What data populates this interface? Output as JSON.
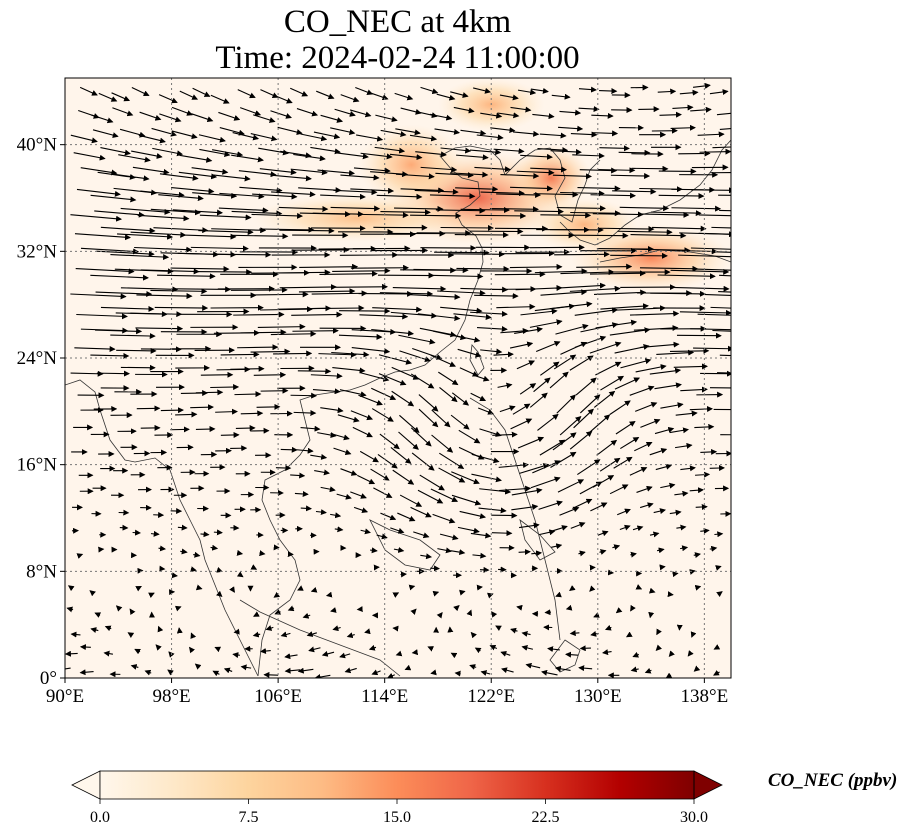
{
  "title_line1": "CO_NEC at 4km",
  "title_line2": "Time: 2024-02-24 11:00:00",
  "map": {
    "lon_range": [
      90,
      140
    ],
    "lat_range": [
      0,
      45
    ],
    "lon_ticks": [
      {
        "value": 90,
        "label": "90°E"
      },
      {
        "value": 98,
        "label": "98°E"
      },
      {
        "value": 106,
        "label": "106°E"
      },
      {
        "value": 114,
        "label": "114°E"
      },
      {
        "value": 122,
        "label": "122°E"
      },
      {
        "value": 130,
        "label": "130°E"
      },
      {
        "value": 138,
        "label": "138°E"
      }
    ],
    "lat_ticks": [
      {
        "value": 0,
        "label": "0°"
      },
      {
        "value": 8,
        "label": "8°N"
      },
      {
        "value": 16,
        "label": "16°N"
      },
      {
        "value": 24,
        "label": "24°N"
      },
      {
        "value": 32,
        "label": "32°N"
      },
      {
        "value": 40,
        "label": "40°N"
      }
    ],
    "gridlines": true,
    "background_color": "#fff5eb",
    "plumes": [
      {
        "lon": 121.0,
        "lat": 36.0,
        "rlon": 7.0,
        "rlat": 3.5,
        "ppbv": 19
      },
      {
        "lon": 126.5,
        "lat": 37.5,
        "rlon": 3.0,
        "rlat": 2.5,
        "ppbv": 17
      },
      {
        "lon": 116.0,
        "lat": 38.5,
        "rlon": 4.0,
        "rlat": 3.0,
        "ppbv": 13
      },
      {
        "lon": 112.0,
        "lat": 34.5,
        "rlon": 8.0,
        "rlat": 1.8,
        "ppbv": 11
      },
      {
        "lon": 134.0,
        "lat": 31.5,
        "rlon": 6.0,
        "rlat": 2.5,
        "ppbv": 16
      },
      {
        "lon": 122.0,
        "lat": 43.0,
        "rlon": 4.0,
        "rlat": 2.0,
        "ppbv": 12
      },
      {
        "lon": 129.0,
        "lat": 34.0,
        "rlon": 4.0,
        "rlat": 2.0,
        "ppbv": 12
      }
    ]
  },
  "colorbar": {
    "title": "CO_NEC (ppbv)",
    "min": 0.0,
    "max": 30.0,
    "extend": "both",
    "colormap": "OrRd",
    "stops": [
      "#fff7ec",
      "#fee8c8",
      "#fdd49e",
      "#fdbb84",
      "#fc8d59",
      "#ef6548",
      "#d7301f",
      "#b30000",
      "#7f0000"
    ],
    "tick_labels": [
      "0.0",
      "7.5",
      "15.0",
      "22.5",
      "30.0"
    ]
  }
}
